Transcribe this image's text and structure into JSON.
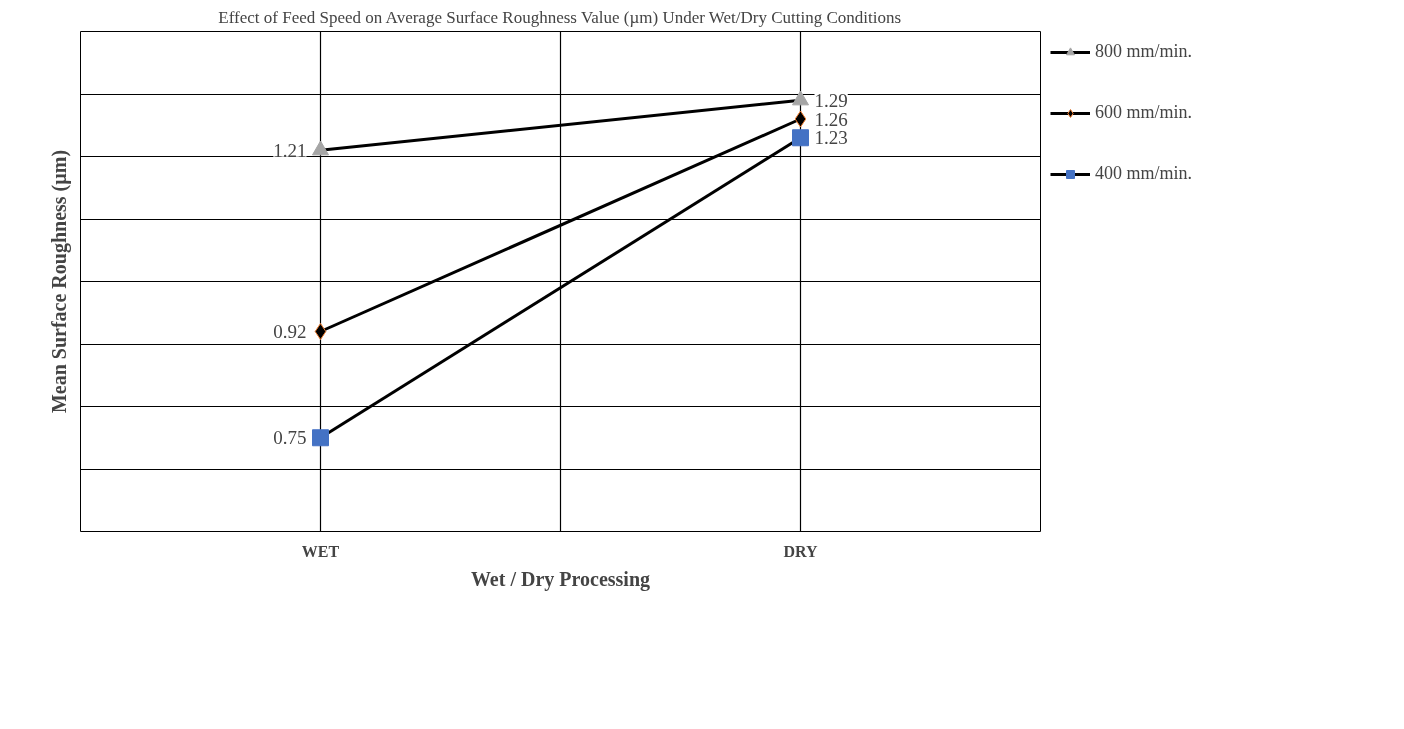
{
  "chart_data": {
    "type": "line",
    "title": "Effect of Feed Speed on Average Surface Roughness Value (µm) Under Wet/Dry Cutting Conditions",
    "xlabel": "Wet / Dry Processing",
    "ylabel": "Mean Surface Roughness (µm)",
    "categories": [
      "WET",
      "DRY"
    ],
    "series": [
      {
        "name": "800 mm/min.",
        "color": "#a5a5a5",
        "marker": "triangle",
        "values": [
          1.21,
          1.29
        ]
      },
      {
        "name": "600 mm/min.",
        "color": "#000000",
        "marker": "diamond",
        "values": [
          0.92,
          1.26
        ]
      },
      {
        "name": "400 mm/min.",
        "color": "#4472c4",
        "marker": "square",
        "values": [
          0.75,
          1.23
        ]
      }
    ],
    "ylim": [
      0.6,
      1.4
    ],
    "yticks": [
      {
        "value": 0.6,
        "label": null
      },
      {
        "value": 0.7,
        "label": null
      },
      {
        "value": 0.8,
        "label": null
      },
      {
        "value": 0.9,
        "label": null
      },
      {
        "value": 1.0,
        "label": null
      },
      {
        "value": 1.1,
        "label": null
      },
      {
        "value": 1.2,
        "label": null
      },
      {
        "value": 1.3,
        "label": null
      },
      {
        "value": 1.4,
        "label": null
      }
    ],
    "tick_labels": "x",
    "grid": true,
    "legend": "right",
    "data_labels": true,
    "line_style": "solid"
  }
}
